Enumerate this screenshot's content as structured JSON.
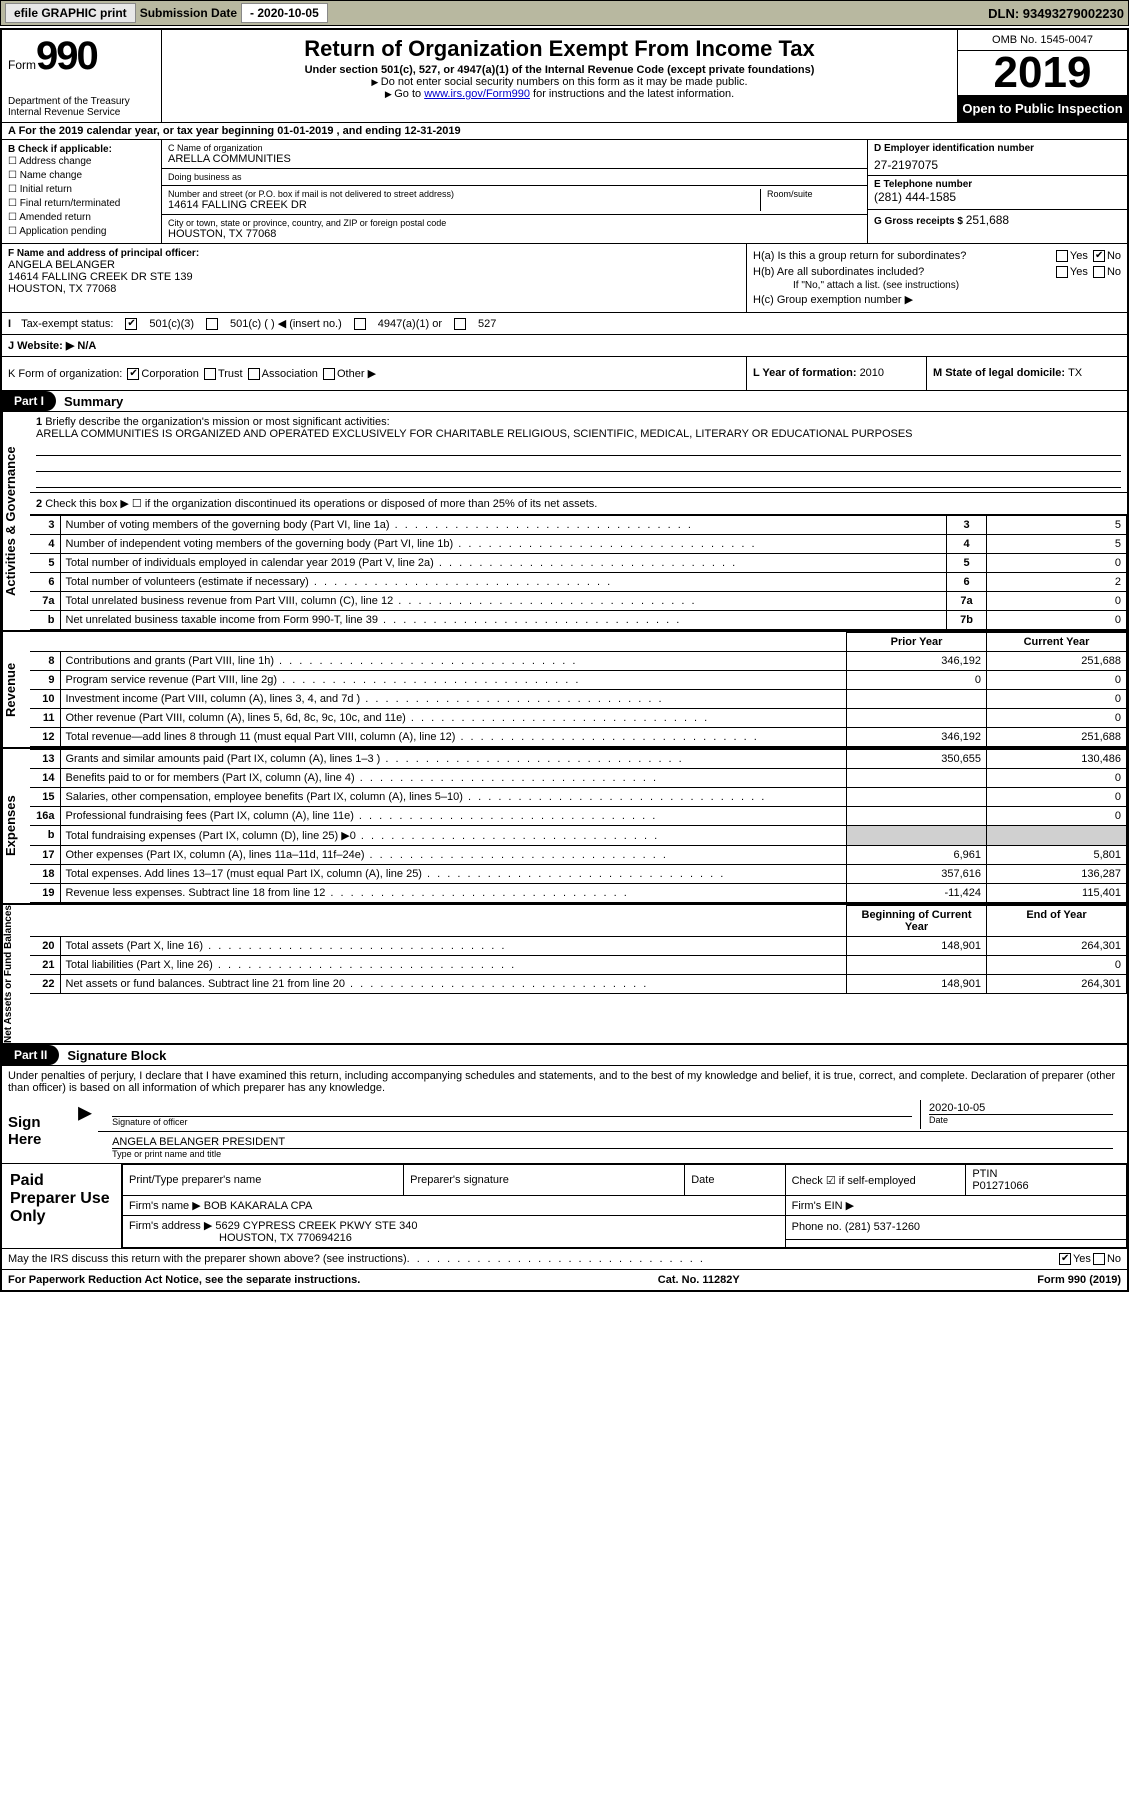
{
  "topbar": {
    "efile": "efile GRAPHIC print",
    "sub_label": "Submission Date ",
    "sub_date": "- 2020-10-05",
    "dln": "DLN: 93493279002230"
  },
  "header": {
    "form_word": "Form",
    "form_num": "990",
    "dept": "Department of the Treasury\nInternal Revenue Service",
    "title": "Return of Organization Exempt From Income Tax",
    "sub1": "Under section 501(c), 527, or 4947(a)(1) of the Internal Revenue Code (except private foundations)",
    "sub2": "Do not enter social security numbers on this form as it may be made public.",
    "sub3_a": "Go to ",
    "sub3_link": "www.irs.gov/Form990",
    "sub3_b": " for instructions and the latest information.",
    "omb": "OMB No. 1545-0047",
    "year": "2019",
    "open": "Open to Public Inspection"
  },
  "rowA": "A For the 2019 calendar year, or tax year beginning 01-01-2019   , and ending 12-31-2019",
  "colB": {
    "label": "B Check if applicable:",
    "items": [
      "Address change",
      "Name change",
      "Initial return",
      "Final return/terminated",
      "Amended return",
      "Application pending"
    ]
  },
  "colC": {
    "name_lbl": "C Name of organization",
    "name": "ARELLA COMMUNITIES",
    "dba_lbl": "Doing business as",
    "addr_lbl": "Number and street (or P.O. box if mail is not delivered to street address)",
    "room_lbl": "Room/suite",
    "addr": "14614 FALLING CREEK DR",
    "city_lbl": "City or town, state or province, country, and ZIP or foreign postal code",
    "city": "HOUSTON, TX  77068"
  },
  "colD": {
    "ein_lbl": "D Employer identification number",
    "ein": "27-2197075",
    "tel_lbl": "E Telephone number",
    "tel": "(281) 444-1585",
    "gross_lbl": "G Gross receipts $ ",
    "gross": "251,688"
  },
  "colF": {
    "lbl": "F  Name and address of principal officer:",
    "name": "ANGELA BELANGER",
    "addr1": "14614 FALLING CREEK DR STE 139",
    "addr2": "HOUSTON, TX  77068"
  },
  "colH": {
    "ha": "H(a)  Is this a group return for subordinates?",
    "hb": "H(b)  Are all subordinates included?",
    "hb_note": "If \"No,\" attach a list. (see instructions)",
    "hc": "H(c)  Group exemption number ▶",
    "yes": "Yes",
    "no": "No"
  },
  "rowI": {
    "lbl": "Tax-exempt status:",
    "o1": "501(c)(3)",
    "o2": "501(c) (  ) ◀ (insert no.)",
    "o3": "4947(a)(1) or",
    "o4": "527"
  },
  "rowJ": {
    "lbl": "J  Website: ▶",
    "val": "N/A"
  },
  "rowK": {
    "lbl": "K Form of organization:",
    "o1": "Corporation",
    "o2": "Trust",
    "o3": "Association",
    "o4": "Other ▶"
  },
  "rowL": {
    "lbl": "L Year of formation: ",
    "val": "2010"
  },
  "rowM": {
    "lbl": "M State of legal domicile: ",
    "val": "TX"
  },
  "part1": {
    "label": "Part I",
    "title": "Summary",
    "q1_lbl": "Briefly describe the organization's mission or most significant activities:",
    "q1_val": "ARELLA COMMUNITIES IS ORGANIZED AND OPERATED EXCLUSIVELY FOR CHARITABLE RELIGIOUS, SCIENTIFIC, MEDICAL, LITERARY OR EDUCATIONAL PURPOSES",
    "q2": "Check this box ▶ ☐  if the organization discontinued its operations or disposed of more than 25% of its net assets.",
    "sec_ag": "Activities & Governance",
    "sec_rev": "Revenue",
    "sec_exp": "Expenses",
    "sec_net": "Net Assets or Fund Balances",
    "col_prior": "Prior Year",
    "col_curr": "Current Year",
    "col_beg": "Beginning of Current Year",
    "col_end": "End of Year",
    "rows_ag": [
      {
        "n": "3",
        "d": "Number of voting members of the governing body (Part VI, line 1a)",
        "b": "3",
        "v": "5"
      },
      {
        "n": "4",
        "d": "Number of independent voting members of the governing body (Part VI, line 1b)",
        "b": "4",
        "v": "5"
      },
      {
        "n": "5",
        "d": "Total number of individuals employed in calendar year 2019 (Part V, line 2a)",
        "b": "5",
        "v": "0"
      },
      {
        "n": "6",
        "d": "Total number of volunteers (estimate if necessary)",
        "b": "6",
        "v": "2"
      },
      {
        "n": "7a",
        "d": "Total unrelated business revenue from Part VIII, column (C), line 12",
        "b": "7a",
        "v": "0"
      },
      {
        "n": "b",
        "d": "Net unrelated business taxable income from Form 990-T, line 39",
        "b": "7b",
        "v": "0"
      }
    ],
    "rows_rev": [
      {
        "n": "8",
        "d": "Contributions and grants (Part VIII, line 1h)",
        "p": "346,192",
        "c": "251,688"
      },
      {
        "n": "9",
        "d": "Program service revenue (Part VIII, line 2g)",
        "p": "0",
        "c": "0"
      },
      {
        "n": "10",
        "d": "Investment income (Part VIII, column (A), lines 3, 4, and 7d )",
        "p": "",
        "c": "0"
      },
      {
        "n": "11",
        "d": "Other revenue (Part VIII, column (A), lines 5, 6d, 8c, 9c, 10c, and 11e)",
        "p": "",
        "c": "0"
      },
      {
        "n": "12",
        "d": "Total revenue—add lines 8 through 11 (must equal Part VIII, column (A), line 12)",
        "p": "346,192",
        "c": "251,688"
      }
    ],
    "rows_exp": [
      {
        "n": "13",
        "d": "Grants and similar amounts paid (Part IX, column (A), lines 1–3 )",
        "p": "350,655",
        "c": "130,486"
      },
      {
        "n": "14",
        "d": "Benefits paid to or for members (Part IX, column (A), line 4)",
        "p": "",
        "c": "0"
      },
      {
        "n": "15",
        "d": "Salaries, other compensation, employee benefits (Part IX, column (A), lines 5–10)",
        "p": "",
        "c": "0"
      },
      {
        "n": "16a",
        "d": "Professional fundraising fees (Part IX, column (A), line 11e)",
        "p": "",
        "c": "0"
      },
      {
        "n": "b",
        "d": "Total fundraising expenses (Part IX, column (D), line 25) ▶0",
        "p": "shade",
        "c": "shade"
      },
      {
        "n": "17",
        "d": "Other expenses (Part IX, column (A), lines 11a–11d, 11f–24e)",
        "p": "6,961",
        "c": "5,801"
      },
      {
        "n": "18",
        "d": "Total expenses. Add lines 13–17 (must equal Part IX, column (A), line 25)",
        "p": "357,616",
        "c": "136,287"
      },
      {
        "n": "19",
        "d": "Revenue less expenses. Subtract line 18 from line 12",
        "p": "-11,424",
        "c": "115,401"
      }
    ],
    "rows_net": [
      {
        "n": "20",
        "d": "Total assets (Part X, line 16)",
        "p": "148,901",
        "c": "264,301"
      },
      {
        "n": "21",
        "d": "Total liabilities (Part X, line 26)",
        "p": "",
        "c": "0"
      },
      {
        "n": "22",
        "d": "Net assets or fund balances. Subtract line 21 from line 20",
        "p": "148,901",
        "c": "264,301"
      }
    ]
  },
  "part2": {
    "label": "Part II",
    "title": "Signature Block",
    "decl": "Under penalties of perjury, I declare that I have examined this return, including accompanying schedules and statements, and to the best of my knowledge and belief, it is true, correct, and complete. Declaration of preparer (other than officer) is based on all information of which preparer has any knowledge.",
    "sign_here": "Sign Here",
    "sig_lbl": "Signature of officer",
    "date_lbl": "Date",
    "date_val": "2020-10-05",
    "name_lbl": "Type or print name and title",
    "name_val": "ANGELA BELANGER  PRESIDENT",
    "paid": "Paid Preparer Use Only",
    "prep_name_lbl": "Print/Type preparer's name",
    "prep_sig_lbl": "Preparer's signature",
    "prep_date_lbl": "Date",
    "prep_check": "Check ☑ if self-employed",
    "ptin_lbl": "PTIN",
    "ptin": "P01271066",
    "firm_name_lbl": "Firm's name   ▶",
    "firm_name": "BOB KAKARALA CPA",
    "firm_ein_lbl": "Firm's EIN ▶",
    "firm_addr_lbl": "Firm's address ▶",
    "firm_addr1": "5629 CYPRESS CREEK PKWY STE 340",
    "firm_addr2": "HOUSTON, TX  770694216",
    "firm_phone_lbl": "Phone no. ",
    "firm_phone": "(281) 537-1260",
    "discuss": "May the IRS discuss this return with the preparer shown above? (see instructions)",
    "yes": "Yes",
    "no": "No"
  },
  "footer": {
    "left": "For Paperwork Reduction Act Notice, see the separate instructions.",
    "mid": "Cat. No. 11282Y",
    "right": "Form 990 (2019)"
  }
}
